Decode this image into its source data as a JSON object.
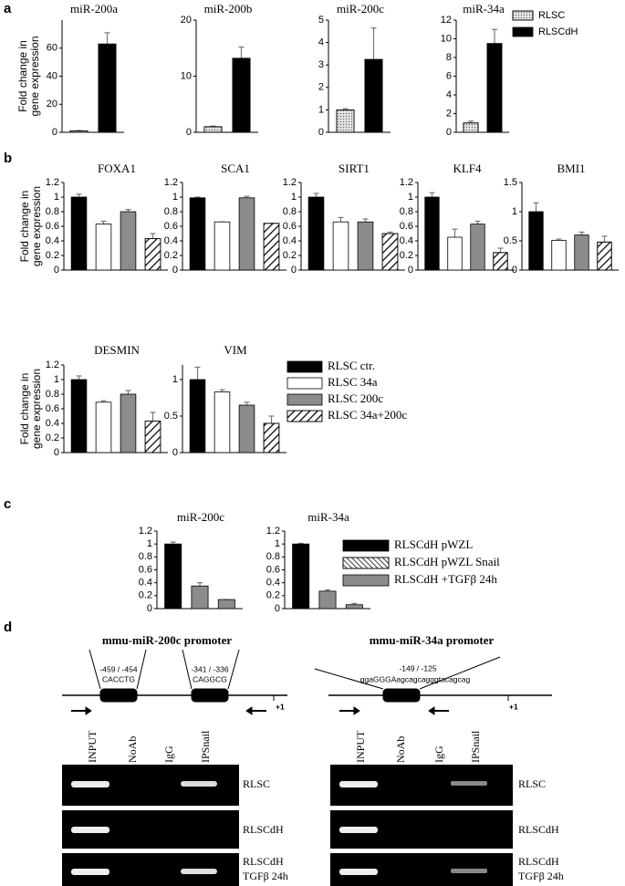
{
  "panel_labels": [
    "a",
    "b",
    "c",
    "d"
  ],
  "legends": [
    [
      {
        "name": "RLSC",
        "color": "#e0e0e0",
        "hatch": "dots"
      },
      {
        "name": "RLSCdH",
        "color": "#000000",
        "hatch": "none"
      }
    ],
    [
      {
        "name": "RLSC ctr.",
        "color": "#000000",
        "hatch": "none"
      },
      {
        "name": "RLSC 34a",
        "color": "#ffffff",
        "hatch": "none"
      },
      {
        "name": "RLSC 200c",
        "color": "#8c8c8c",
        "hatch": "none"
      },
      {
        "name": "RLSC 34a+200c",
        "color": "#ffffff",
        "hatch": "hatch"
      }
    ],
    [
      {
        "name": "RLSCdH pWZL",
        "color": "#000000",
        "hatch": "none"
      },
      {
        "name": "RLSCdH pWZL Snail",
        "color": "#ffffff",
        "hatch": "backhatch"
      },
      {
        "name": "RLSCdH +TGFβ 24h",
        "color": "#8c8c8c",
        "hatch": "none"
      }
    ]
  ],
  "chart_data": [
    {
      "type": "bar",
      "title": "miR-200a",
      "ylabel": [
        "Fold change in",
        "gene expression"
      ],
      "values": [
        1,
        63
      ],
      "errors": [
        0.3,
        8
      ],
      "colors": [
        "#e0e0e0",
        "#000000"
      ],
      "hatch": [
        "dots",
        "none"
      ],
      "ylim": [
        0,
        80
      ],
      "yticks": [
        0,
        20,
        40,
        60
      ]
    },
    {
      "type": "bar",
      "title": "miR-200b",
      "values": [
        1,
        13.2
      ],
      "errors": [
        0.1,
        2
      ],
      "colors": [
        "#e0e0e0",
        "#000000"
      ],
      "hatch": [
        "dots",
        "none"
      ],
      "ylim": [
        0,
        20
      ],
      "yticks": [
        0,
        10,
        20
      ]
    },
    {
      "type": "bar",
      "title": "miR-200c",
      "values": [
        1,
        3.25
      ],
      "errors": [
        0.05,
        1.4
      ],
      "colors": [
        "#e0e0e0",
        "#000000"
      ],
      "hatch": [
        "dots",
        "none"
      ],
      "ylim": [
        0,
        5
      ],
      "yticks": [
        0,
        1,
        2,
        3,
        4,
        5
      ]
    },
    {
      "type": "bar",
      "title": "miR-34a",
      "values": [
        1,
        9.5
      ],
      "errors": [
        0.2,
        1.5
      ],
      "colors": [
        "#e0e0e0",
        "#000000"
      ],
      "hatch": [
        "dots",
        "none"
      ],
      "ylim": [
        0,
        12
      ],
      "yticks": [
        0,
        2,
        4,
        6,
        8,
        10,
        12
      ]
    },
    {
      "type": "bar",
      "title": "FOXA1",
      "ylabel": [
        "Fold change in",
        "gene expression"
      ],
      "values": [
        1,
        0.63,
        0.8,
        0.43
      ],
      "errors": [
        0.04,
        0.04,
        0.03,
        0.07
      ],
      "colors": [
        "#000000",
        "#ffffff",
        "#8c8c8c",
        "#ffffff"
      ],
      "hatch": [
        "none",
        "none",
        "none",
        "hatch"
      ],
      "ylim": [
        0,
        1.2
      ],
      "yticks": [
        0,
        0.2,
        0.4,
        0.6,
        0.8,
        1,
        1.2
      ]
    },
    {
      "type": "bar",
      "title": "SCA1",
      "values": [
        0.99,
        0.66,
        0.99,
        0.64
      ],
      "errors": [
        0.01,
        0,
        0.02,
        0
      ],
      "colors": [
        "#000000",
        "#ffffff",
        "#8c8c8c",
        "#ffffff"
      ],
      "hatch": [
        "none",
        "none",
        "none",
        "hatch"
      ],
      "ylim": [
        0,
        1.2
      ],
      "yticks": [
        0,
        0.2,
        0.4,
        0.6,
        0.8,
        1,
        1.2
      ]
    },
    {
      "type": "bar",
      "title": "SIRT1",
      "values": [
        1,
        0.66,
        0.66,
        0.5
      ],
      "errors": [
        0.05,
        0.06,
        0.04,
        0.02
      ],
      "colors": [
        "#000000",
        "#ffffff",
        "#8c8c8c",
        "#ffffff"
      ],
      "hatch": [
        "none",
        "none",
        "none",
        "hatch"
      ],
      "ylim": [
        0,
        1.2
      ],
      "yticks": [
        0,
        0.2,
        0.4,
        0.6,
        0.8,
        1,
        1.2
      ]
    },
    {
      "type": "bar",
      "title": "KLF4",
      "values": [
        1,
        0.45,
        0.63,
        0.24
      ],
      "errors": [
        0.06,
        0.11,
        0.04,
        0.06
      ],
      "colors": [
        "#000000",
        "#ffffff",
        "#8c8c8c",
        "#ffffff"
      ],
      "hatch": [
        "none",
        "none",
        "none",
        "hatch"
      ],
      "ylim": [
        0,
        1.2
      ],
      "yticks": [
        0,
        0.2,
        0.4,
        0.6,
        0.8,
        1,
        1.2
      ]
    },
    {
      "type": "bar",
      "title": "BMI1",
      "values": [
        1,
        0.51,
        0.6,
        0.48
      ],
      "errors": [
        0.15,
        0.02,
        0.05,
        0.1
      ],
      "colors": [
        "#000000",
        "#ffffff",
        "#8c8c8c",
        "#ffffff"
      ],
      "hatch": [
        "none",
        "none",
        "none",
        "hatch"
      ],
      "ylim": [
        0,
        1.5
      ],
      "yticks": [
        0,
        0.5,
        1,
        1.5
      ]
    },
    {
      "type": "bar",
      "title": "DESMIN",
      "ylabel": [
        "Fold change in",
        "gene expression"
      ],
      "values": [
        1,
        0.69,
        0.8,
        0.43
      ],
      "errors": [
        0.05,
        0.02,
        0.05,
        0.12
      ],
      "colors": [
        "#000000",
        "#ffffff",
        "#8c8c8c",
        "#ffffff"
      ],
      "hatch": [
        "none",
        "none",
        "none",
        "hatch"
      ],
      "ylim": [
        0,
        1.2
      ],
      "yticks": [
        0,
        0.2,
        0.4,
        0.6,
        0.8,
        1,
        1.2
      ]
    },
    {
      "type": "bar",
      "title": "VIM",
      "values": [
        1,
        0.83,
        0.65,
        0.4
      ],
      "errors": [
        0.17,
        0.03,
        0.04,
        0.1
      ],
      "colors": [
        "#000000",
        "#ffffff",
        "#8c8c8c",
        "#ffffff"
      ],
      "hatch": [
        "none",
        "none",
        "none",
        "hatch"
      ],
      "ylim": [
        0,
        1.2
      ],
      "yticks": [
        0,
        0.5,
        1
      ]
    },
    {
      "type": "bar",
      "title": "miR-200c",
      "values": [
        1,
        0.35,
        0.14
      ],
      "errors": [
        0.03,
        0.05,
        0
      ],
      "colors": [
        "#000000",
        "#8c8c8c",
        "#8c8c8c"
      ],
      "hatch": [
        "none",
        "none",
        "none"
      ],
      "ylim": [
        0,
        1.2
      ],
      "yticks": [
        0,
        0.2,
        0.4,
        0.6,
        0.8,
        1,
        1.2
      ]
    },
    {
      "type": "bar",
      "title": "miR-34a",
      "values": [
        1,
        0.27,
        0.06
      ],
      "errors": [
        0.01,
        0.02,
        0.02
      ],
      "colors": [
        "#000000",
        "#8c8c8c",
        "#8c8c8c"
      ],
      "hatch": [
        "none",
        "none",
        "none"
      ],
      "ylim": [
        0,
        1.2
      ],
      "yticks": [
        0,
        0.2,
        0.4,
        0.6,
        0.8,
        1,
        1.2
      ]
    }
  ],
  "diagram": {
    "promoters": [
      {
        "title": "mmu-miR-200c promoter",
        "sites": [
          {
            "position": "-459 / -454",
            "sequence": "CACCTG"
          },
          {
            "position": "-341 / -336",
            "sequence": "CAGGCG"
          }
        ],
        "tss": "+1"
      },
      {
        "title": "mmu-miR-34a promoter",
        "sites": [
          {
            "position": "-149 / -125",
            "sequence": "ggaGGGAagcagcagggtacagcag"
          }
        ],
        "tss": "+1"
      }
    ]
  },
  "gels": [
    {
      "lanes": [
        "INPUT",
        "NoAb",
        "IgG",
        "IPSnail"
      ],
      "rows": [
        [
          "RLSC"
        ],
        [
          "RLSCdH"
        ],
        [
          "RLSCdH",
          "TGFβ 24h"
        ]
      ]
    },
    {
      "lanes": [
        "INPUT",
        "NoAb",
        "IgG",
        "IPSnail"
      ],
      "rows": [
        [
          "RLSC"
        ],
        [
          "RLSCdH"
        ],
        [
          "RLSCdH",
          "TGFβ 24h"
        ]
      ]
    }
  ]
}
